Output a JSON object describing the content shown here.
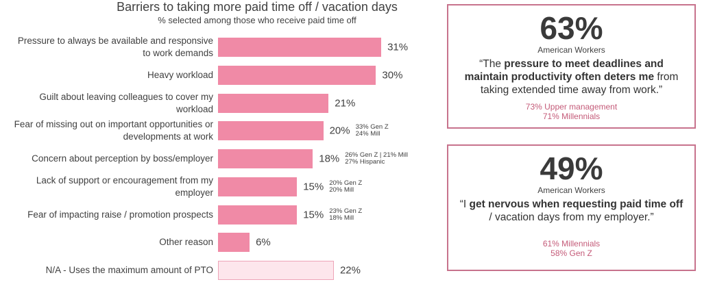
{
  "chart_data": {
    "type": "bar",
    "orientation": "horizontal",
    "title": "Barriers to taking more paid time off / vacation days",
    "subtitle": "% selected among those who receive paid time off",
    "categories": [
      "Pressure to always be available and responsive to work demands",
      "Heavy workload",
      "Guilt about leaving colleagues to cover my workload",
      "Fear of missing out on important opportunities or developments at work",
      "Concern about perception by boss/employer",
      "Lack of support or encouragement from my employer",
      "Fear of impacting raise / promotion prospects",
      "Other reason",
      "N/A - Uses the maximum amount of PTO"
    ],
    "values": [
      31,
      30,
      21,
      20,
      18,
      15,
      15,
      6,
      22
    ],
    "value_labels": [
      "31%",
      "30%",
      "21%",
      "20%",
      "18%",
      "15%",
      "15%",
      "6%",
      "22%"
    ],
    "colors": [
      "#f08aa6",
      "#f08aa6",
      "#f08aa6",
      "#f08aa6",
      "#f08aa6",
      "#f08aa6",
      "#f08aa6",
      "#f08aa6",
      "#fde6ec"
    ],
    "notes": [
      null,
      null,
      null,
      [
        "33% Gen Z",
        "24% Mill"
      ],
      [
        "26% Gen Z | 21% Mill",
        "27% Hispanic"
      ],
      [
        "20% Gen Z",
        "20% Mill"
      ],
      [
        "23% Gen Z",
        "18% Mill"
      ],
      null,
      null
    ]
  },
  "cards": [
    {
      "stat": "63%",
      "label": "American Workers",
      "quote": [
        {
          "text": "“The ",
          "bold": false
        },
        {
          "text": "pressure to meet deadlines and maintain productivity often deters me",
          "bold": true
        },
        {
          "text": " from taking extended time away from work.”",
          "bold": false
        }
      ],
      "details": [
        "73% Upper management",
        "71% Millennials"
      ]
    },
    {
      "stat": "49%",
      "label": "American Workers",
      "quote": [
        {
          "text": "“I ",
          "bold": false
        },
        {
          "text": "get nervous when requesting paid time off",
          "bold": true
        },
        {
          "text": " / vacation days from my employer.”",
          "bold": false
        }
      ],
      "details": [
        "61% Millennials",
        "58% Gen Z"
      ]
    }
  ]
}
